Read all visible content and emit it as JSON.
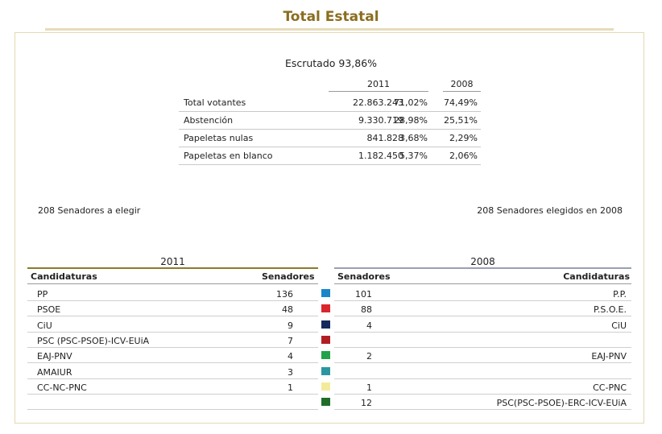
{
  "header": {
    "title": "Total Estatal"
  },
  "summary": {
    "escrutado": "Escrutado 93,86%",
    "year_current": "2011",
    "year_previous": "2008",
    "rows": [
      {
        "label": "Total votantes",
        "votes": "22.863.243",
        "pct": "71,02%",
        "prev": "74,49%"
      },
      {
        "label": "Abstención",
        "votes": "9.330.719",
        "pct": "28,98%",
        "prev": "25,51%"
      },
      {
        "label": "Papeletas nulas",
        "votes": "841.828",
        "pct": "3,68%",
        "prev": "2,29%"
      },
      {
        "label": "Papeletas en blanco",
        "votes": "1.182.450",
        "pct": "5,37%",
        "prev": "2,06%"
      }
    ]
  },
  "notes": {
    "left": "208 Senadores a elegir",
    "right": "208 Senadores elegidos en 2008"
  },
  "results": {
    "year_left": "2011",
    "year_right": "2008",
    "col_candidaturas": "Candidaturas",
    "col_senadores": "Senadores",
    "rows": [
      {
        "party": "PP",
        "seats_2011": "136",
        "color": "#1a86c8",
        "seats_2008": "101",
        "party_2008": "P.P."
      },
      {
        "party": "PSOE",
        "seats_2011": "48",
        "color": "#d9262d",
        "seats_2008": "88",
        "party_2008": "P.S.O.E."
      },
      {
        "party": "CiU",
        "seats_2011": "9",
        "color": "#142a5c",
        "seats_2008": "4",
        "party_2008": "CiU"
      },
      {
        "party": "PSC (PSC-PSOE)-ICV-EUiA",
        "seats_2011": "7",
        "color": "#b01e24",
        "seats_2008": "",
        "party_2008": ""
      },
      {
        "party": "EAJ-PNV",
        "seats_2011": "4",
        "color": "#22a24a",
        "seats_2008": "2",
        "party_2008": "EAJ-PNV"
      },
      {
        "party": "AMAIUR",
        "seats_2011": "3",
        "color": "#2a97a0",
        "seats_2008": "",
        "party_2008": ""
      },
      {
        "party": "CC-NC-PNC",
        "seats_2011": "1",
        "color": "#f2ec9a",
        "seats_2008": "1",
        "party_2008": "CC-PNC"
      },
      {
        "party": "",
        "seats_2011": "",
        "color": "#1e6e2a",
        "seats_2008": "12",
        "party_2008": "PSC(PSC-PSOE)-ERC-ICV-EUiA"
      }
    ]
  }
}
